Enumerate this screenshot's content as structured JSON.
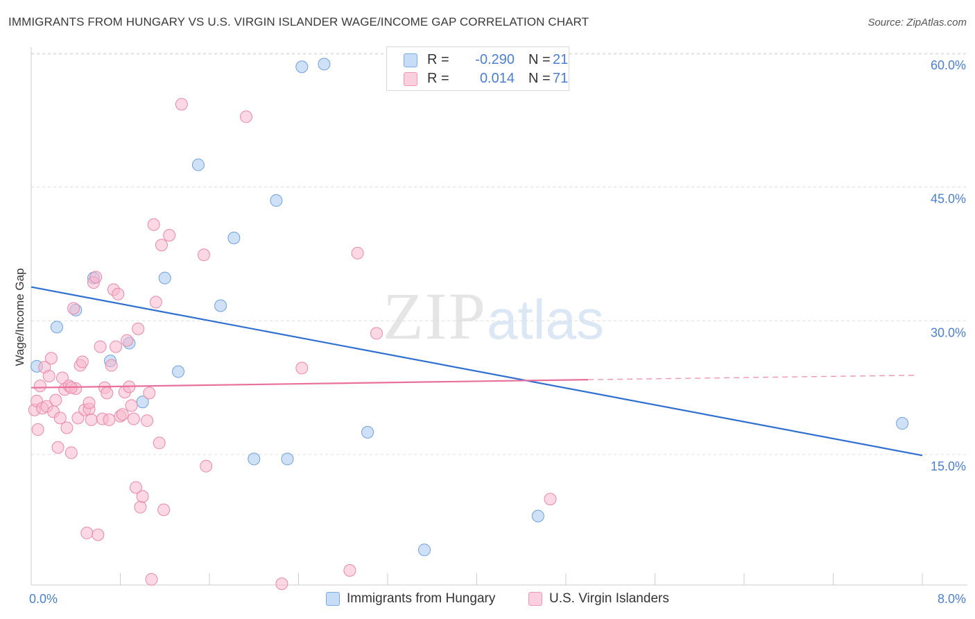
{
  "header": {
    "title": "IMMIGRANTS FROM HUNGARY VS U.S. VIRGIN ISLANDER WAGE/INCOME GAP CORRELATION CHART",
    "source": "Source: ZipAtlas.com"
  },
  "watermark": {
    "zip": "ZIP",
    "atlas": "atlas"
  },
  "legend": {
    "rows": [
      {
        "r_label": "R =",
        "r_value": "-0.290",
        "n_label": "N =",
        "n_value": "21",
        "color": "#a8c8f0"
      },
      {
        "r_label": "R =",
        "r_value": "0.014",
        "n_label": "N =",
        "n_value": "71",
        "color": "#f7b8cc"
      }
    ]
  },
  "bottom_legend": {
    "series1": "Immigrants from Hungary",
    "series2": "U.S. Virgin Islanders"
  },
  "chart_data": {
    "type": "scatter",
    "title": "IMMIGRANTS FROM HUNGARY VS U.S. VIRGIN ISLANDER WAGE/INCOME GAP CORRELATION CHART",
    "xlabel": "",
    "ylabel": "Wage/Income Gap",
    "xlim": [
      0,
      8
    ],
    "ylim": [
      0,
      62
    ],
    "x_tick_labels": [
      "0.0%",
      "8.0%"
    ],
    "y_ticks": [
      15,
      30,
      45,
      60
    ],
    "y_tick_labels": [
      "15.0%",
      "30.0%",
      "45.0%",
      "60.0%"
    ],
    "grid": true,
    "legend_position": "top-center",
    "series": [
      {
        "name": "Immigrants from Hungary",
        "color": "#a8c8f0",
        "stroke": "#6f9fdc",
        "points": [
          [
            0.05,
            24.9
          ],
          [
            0.23,
            29.3
          ],
          [
            0.4,
            31.2
          ],
          [
            0.56,
            34.8
          ],
          [
            0.71,
            25.5
          ],
          [
            0.88,
            27.5
          ],
          [
            1.0,
            20.9
          ],
          [
            1.2,
            34.8
          ],
          [
            1.32,
            24.3
          ],
          [
            1.5,
            47.5
          ],
          [
            1.7,
            31.7
          ],
          [
            1.82,
            39.3
          ],
          [
            2.0,
            14.5
          ],
          [
            2.2,
            43.5
          ],
          [
            2.3,
            14.5
          ],
          [
            2.43,
            58.5
          ],
          [
            2.63,
            58.8
          ],
          [
            3.02,
            17.5
          ],
          [
            3.53,
            4.3
          ],
          [
            4.55,
            8.1
          ],
          [
            7.82,
            18.5
          ]
        ]
      },
      {
        "name": "U.S. Virgin Islanders",
        "color": "#f7b8cc",
        "stroke": "#e888a8",
        "points": [
          [
            0.03,
            20.0
          ],
          [
            0.05,
            21.0
          ],
          [
            0.06,
            17.8
          ],
          [
            0.08,
            22.7
          ],
          [
            0.1,
            20.2
          ],
          [
            0.12,
            24.8
          ],
          [
            0.14,
            20.4
          ],
          [
            0.16,
            23.8
          ],
          [
            0.18,
            25.8
          ],
          [
            0.2,
            19.8
          ],
          [
            0.22,
            21.1
          ],
          [
            0.24,
            15.8
          ],
          [
            0.26,
            19.1
          ],
          [
            0.28,
            23.6
          ],
          [
            0.3,
            22.3
          ],
          [
            0.32,
            18.0
          ],
          [
            0.34,
            22.7
          ],
          [
            0.36,
            15.2
          ],
          [
            0.38,
            31.4
          ],
          [
            0.4,
            22.4
          ],
          [
            0.42,
            19.1
          ],
          [
            0.44,
            25.0
          ],
          [
            0.46,
            25.4
          ],
          [
            0.48,
            20.0
          ],
          [
            0.5,
            6.2
          ],
          [
            0.52,
            20.1
          ],
          [
            0.54,
            18.9
          ],
          [
            0.56,
            34.3
          ],
          [
            0.58,
            34.9
          ],
          [
            0.6,
            6.0
          ],
          [
            0.62,
            27.1
          ],
          [
            0.64,
            19.0
          ],
          [
            0.66,
            22.5
          ],
          [
            0.68,
            21.9
          ],
          [
            0.7,
            18.9
          ],
          [
            0.72,
            25.0
          ],
          [
            0.74,
            33.5
          ],
          [
            0.76,
            27.1
          ],
          [
            0.78,
            33.0
          ],
          [
            0.8,
            19.3
          ],
          [
            0.82,
            19.5
          ],
          [
            0.84,
            22.0
          ],
          [
            0.86,
            27.8
          ],
          [
            0.88,
            22.6
          ],
          [
            0.9,
            20.5
          ],
          [
            0.92,
            19.0
          ],
          [
            0.94,
            11.3
          ],
          [
            0.96,
            29.1
          ],
          [
            0.98,
            9.1
          ],
          [
            1.0,
            10.3
          ],
          [
            1.04,
            18.8
          ],
          [
            1.06,
            21.9
          ],
          [
            1.08,
            1.0
          ],
          [
            1.1,
            40.8
          ],
          [
            1.12,
            32.1
          ],
          [
            1.15,
            16.3
          ],
          [
            1.17,
            38.5
          ],
          [
            1.19,
            8.8
          ],
          [
            1.24,
            39.6
          ],
          [
            1.35,
            54.3
          ],
          [
            1.55,
            37.4
          ],
          [
            1.57,
            13.7
          ],
          [
            1.93,
            52.9
          ],
          [
            2.25,
            0.5
          ],
          [
            2.43,
            24.7
          ],
          [
            2.86,
            2.0
          ],
          [
            2.93,
            37.6
          ],
          [
            3.1,
            28.6
          ],
          [
            4.66,
            10.0
          ],
          [
            0.52,
            20.8
          ],
          [
            0.36,
            22.5
          ]
        ]
      }
    ],
    "trend_lines": [
      {
        "series": "Immigrants from Hungary",
        "x": [
          0,
          8
        ],
        "y": [
          33.8,
          14.9
        ],
        "color": "#2f6fd0"
      },
      {
        "series": "U.S. Virgin Islanders",
        "x": [
          0,
          5.0
        ],
        "y": [
          22.5,
          23.4
        ],
        "color": "#e8709a",
        "dashed_extension": {
          "x": [
            5.0,
            8.0
          ],
          "y": [
            23.4,
            23.9
          ]
        }
      }
    ]
  }
}
